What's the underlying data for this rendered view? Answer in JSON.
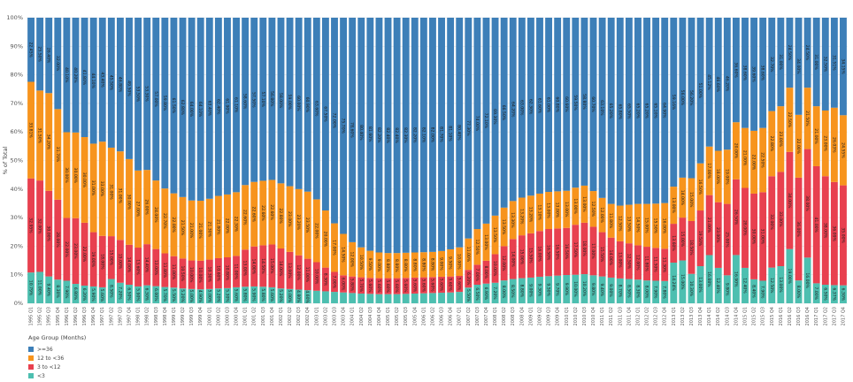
{
  "chart_data": {
    "type": "bar",
    "stacked": true,
    "percent": true,
    "ylabel": "% of Total",
    "yticks": [
      "0%",
      "10%",
      "20%",
      "30%",
      "40%",
      "50%",
      "60%",
      "70%",
      "80%",
      "90%",
      "100%"
    ],
    "ylim": [
      0,
      100
    ],
    "legend": {
      "title": "Age Group (Months)",
      "position": "bottom-left"
    },
    "categories": [
      "1995 Q1",
      "1995 Q2",
      "1995 Q3",
      "1995 Q4",
      "1996 Q1",
      "1996 Q2",
      "1996 Q3",
      "1996 Q4",
      "1997 Q1",
      "1997 Q2",
      "1997 Q3",
      "1997 Q4",
      "1998 Q1",
      "1998 Q2",
      "1998 Q3",
      "1998 Q4",
      "1999 Q1",
      "1999 Q2",
      "1999 Q3",
      "1999 Q4",
      "2000 Q1",
      "2000 Q2",
      "2000 Q3",
      "2000 Q4",
      "2001 Q1",
      "2001 Q2",
      "2001 Q3",
      "2001 Q4",
      "2002 Q1",
      "2002 Q2",
      "2002 Q3",
      "2002 Q4",
      "2003 Q1",
      "2003 Q2",
      "2003 Q3",
      "2003 Q4",
      "2004 Q1",
      "2004 Q2",
      "2004 Q3",
      "2004 Q4",
      "2005 Q1",
      "2005 Q2",
      "2005 Q3",
      "2005 Q4",
      "2006 Q1",
      "2006 Q2",
      "2006 Q3",
      "2006 Q4",
      "2007 Q1",
      "2007 Q2",
      "2007 Q3",
      "2007 Q4",
      "2008 Q1",
      "2008 Q2",
      "2008 Q3",
      "2008 Q4",
      "2009 Q1",
      "2009 Q2",
      "2009 Q3",
      "2009 Q4",
      "2010 Q1",
      "2010 Q2",
      "2010 Q3",
      "2010 Q4",
      "2011 Q1",
      "2011 Q2",
      "2011 Q3",
      "2011 Q4",
      "2012 Q1",
      "2012 Q2",
      "2012 Q3",
      "2012 Q4",
      "2013 Q1",
      "2013 Q2",
      "2013 Q3",
      "2013 Q4",
      "2014 Q1",
      "2014 Q2",
      "2014 Q3",
      "2014 Q4",
      "2015 Q1",
      "2015 Q2",
      "2015 Q3",
      "2015 Q4",
      "2016 Q1",
      "2016 Q2",
      "2016 Q3",
      "2016 Q4",
      "2017 Q1",
      "2017 Q2",
      "2017 Q3",
      "2017 Q4"
    ],
    "series": [
      {
        "name": "<3",
        "color": "#4dbfb0",
        "values": [
          10.79,
          11.0,
          9.4,
          8.3,
          7.9,
          6.8,
          6.2,
          5.9,
          5.6,
          8.5,
          7.2,
          6.5,
          5.9,
          6.3,
          6.0,
          5.7,
          5.5,
          5.2,
          5.0,
          4.9,
          5.0,
          5.2,
          5.3,
          5.6,
          5.8,
          5.9,
          5.8,
          5.6,
          5.2,
          5.0,
          4.8,
          4.6,
          4.4,
          4.2,
          4.0,
          3.8,
          3.6,
          3.4,
          3.3,
          3.2,
          3.2,
          3.2,
          3.3,
          3.4,
          3.5,
          3.6,
          3.7,
          3.8,
          4.0,
          5.5,
          6.5,
          6.9,
          7.2,
          8.0,
          8.5,
          8.8,
          9.0,
          9.3,
          9.5,
          9.7,
          9.9,
          10.0,
          10.2,
          9.8,
          9.4,
          9.0,
          8.7,
          8.5,
          8.3,
          8.0,
          7.9,
          7.8,
          14.24,
          15.0,
          10.3,
          13.0,
          16.88,
          12.4,
          9.8,
          16.9,
          12.4,
          8.4,
          7.9,
          12.5,
          13.0,
          19.0,
          8.0,
          16.0,
          7.0,
          6.5,
          6.37,
          6.3
        ]
      },
      {
        "name": "3 to <12",
        "color": "#e8404f",
        "values": [
          32.95,
          32.0,
          30.0,
          28.0,
          22.0,
          23.0,
          22.0,
          19.0,
          18.0,
          15.0,
          15.0,
          14.0,
          13.6,
          14.4,
          13.0,
          11.8,
          11.0,
          10.5,
          10.0,
          10.0,
          10.3,
          10.6,
          10.8,
          11.0,
          13.0,
          14.0,
          14.5,
          15.0,
          14.0,
          13.0,
          12.0,
          11.0,
          10.0,
          8.3,
          7.0,
          6.0,
          5.8,
          5.7,
          5.6,
          5.6,
          5.6,
          5.6,
          5.6,
          5.6,
          5.6,
          5.6,
          5.6,
          5.6,
          5.6,
          6.2,
          7.0,
          8.0,
          10.0,
          12.0,
          14.0,
          15.0,
          15.5,
          16.0,
          16.5,
          16.5,
          16.5,
          17.5,
          18.0,
          17.0,
          15.5,
          14.0,
          13.0,
          12.5,
          12.0,
          11.8,
          11.5,
          11.3,
          13.6,
          15.0,
          18.5,
          19.5,
          21.0,
          23.0,
          25.0,
          26.5,
          28.0,
          30.0,
          31.0,
          32.0,
          33.0,
          34.0,
          36.0,
          38.0,
          41.0,
          38.0,
          36.09,
          35.0
        ]
      },
      {
        "name": "12 to <36",
        "color": "#f7941d",
        "values": [
          33.81,
          31.5,
          34.2,
          31.7,
          30.0,
          30.0,
          30.0,
          31.0,
          33.0,
          31.0,
          31.0,
          30.0,
          27.0,
          26.0,
          24.0,
          22.7,
          22.0,
          21.5,
          21.0,
          21.0,
          21.3,
          21.8,
          22.0,
          22.3,
          22.6,
          22.6,
          22.6,
          22.6,
          22.8,
          23.0,
          23.2,
          23.5,
          22.0,
          20.0,
          17.0,
          14.5,
          12.0,
          10.5,
          9.5,
          9.0,
          8.8,
          8.8,
          8.8,
          8.8,
          8.8,
          8.8,
          9.0,
          9.5,
          10.0,
          11.0,
          12.5,
          13.0,
          13.5,
          13.5,
          13.3,
          13.2,
          13.2,
          13.1,
          13.0,
          13.0,
          13.0,
          13.0,
          13.0,
          12.5,
          12.0,
          11.8,
          12.5,
          13.5,
          14.5,
          15.0,
          15.5,
          16.0,
          13.0,
          14.0,
          15.0,
          16.5,
          17.0,
          18.0,
          19.0,
          20.0,
          21.0,
          22.0,
          22.5,
          22.8,
          23.0,
          22.5,
          22.0,
          21.5,
          21.0,
          23.0,
          26.03,
          24.55
        ]
      }
    ],
    "top_series": {
      "name": ">=36",
      "color": "#3d7fb8"
    },
    "value_labels_shown": true
  }
}
